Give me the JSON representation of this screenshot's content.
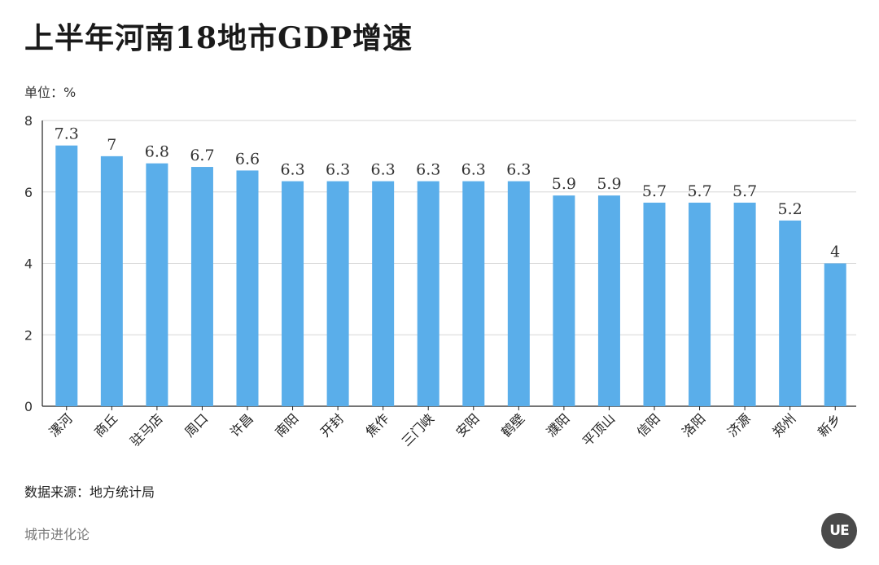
{
  "header": {
    "title": "上半年河南18地市GDP增速",
    "unit": "单位：%"
  },
  "footer": {
    "source": "数据来源：地方统计局",
    "brand": "城市进化论",
    "logo_text": "UE"
  },
  "colors": {
    "bar": "#5aaeea",
    "grid": "#d6d6d6",
    "axis": "#222222"
  },
  "chart_data": {
    "type": "bar",
    "title": "上半年河南18地市GDP增速",
    "ylabel": "单位：%",
    "xlabel": "",
    "ylim": [
      0,
      8
    ],
    "yticks": [
      0,
      2,
      4,
      6,
      8
    ],
    "grid": true,
    "categories": [
      "漯河",
      "商丘",
      "驻马店",
      "周口",
      "许昌",
      "南阳",
      "开封",
      "焦作",
      "三门峡",
      "安阳",
      "鹤壁",
      "濮阳",
      "平顶山",
      "信阳",
      "洛阳",
      "济源",
      "郑州",
      "新乡"
    ],
    "values": [
      7.3,
      7,
      6.8,
      6.7,
      6.6,
      6.3,
      6.3,
      6.3,
      6.3,
      6.3,
      6.3,
      5.9,
      5.9,
      5.7,
      5.7,
      5.7,
      5.2,
      4
    ],
    "data_labels": [
      "7.3",
      "7",
      "6.8",
      "6.7",
      "6.6",
      "6.3",
      "6.3",
      "6.3",
      "6.3",
      "6.3",
      "6.3",
      "5.9",
      "5.9",
      "5.7",
      "5.7",
      "5.7",
      "5.2",
      "4"
    ]
  }
}
